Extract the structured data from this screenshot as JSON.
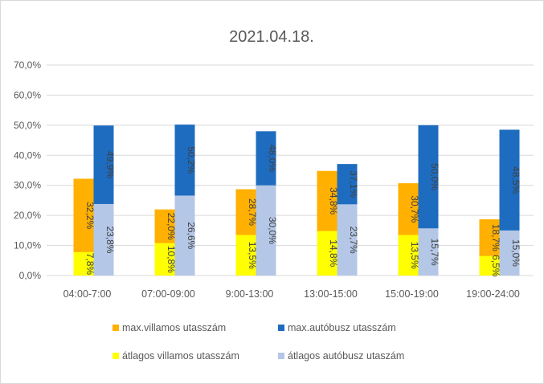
{
  "chart_data": {
    "type": "bar",
    "title": "2021.04.18.",
    "xlabel": "",
    "ylabel": "",
    "ylim": [
      0,
      70
    ],
    "yticks": [
      "0,0%",
      "10,0%",
      "20,0%",
      "30,0%",
      "40,0%",
      "50,0%",
      "60,0%",
      "70,0%"
    ],
    "grid": true,
    "legend_position": "bottom",
    "categories": [
      "04:00-7:00",
      "07:00-09:00",
      "9:00-13:00",
      "13:00-15:00",
      "15:00-19:00",
      "19:00-24:00"
    ],
    "series": [
      {
        "name": "max.villamos utasszám",
        "color": "#FFB000",
        "group": "villamos",
        "layer": "max",
        "values": [
          32.2,
          22.0,
          28.7,
          34.8,
          30.7,
          18.7
        ],
        "labels": [
          "32,2%",
          "22,0%",
          "28,7%",
          "34,8%",
          "30,7%",
          "18,7%"
        ]
      },
      {
        "name": "max.autóbusz utasszám",
        "color": "#1E6CC0",
        "group": "busz",
        "layer": "max",
        "values": [
          49.9,
          50.2,
          48.0,
          37.1,
          50.0,
          48.5
        ],
        "labels": [
          "49,9%",
          "50,2%",
          "48,0%",
          "37,1%",
          "50,0%",
          "48,5%"
        ]
      },
      {
        "name": "átlagos villamos utasszám",
        "color": "#FFFF00",
        "group": "villamos",
        "layer": "avg",
        "values": [
          7.8,
          10.8,
          13.5,
          14.8,
          13.5,
          6.5
        ],
        "labels": [
          "7,8%",
          "10,8%",
          "13,5%",
          "14,8%",
          "13,5%",
          "6,5%"
        ]
      },
      {
        "name": "átlagos autóbusz utaszám",
        "color": "#B4C7E7",
        "group": "busz",
        "layer": "avg",
        "values": [
          23.8,
          26.6,
          30.0,
          23.7,
          15.7,
          15.0
        ],
        "labels": [
          "23,8%",
          "26,6%",
          "30,0%",
          "23,7%",
          "15,7%",
          "15,0%"
        ]
      }
    ]
  }
}
